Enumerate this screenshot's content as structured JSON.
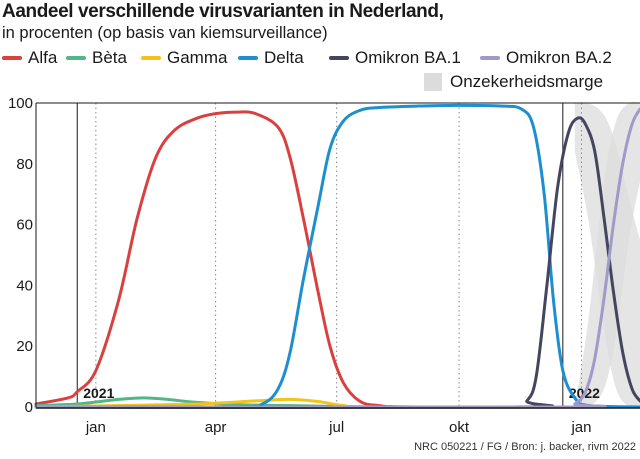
{
  "title": "Aandeel verschillende virusvarianten in Nederland,",
  "subtitle": "in procenten (op basis van kiemsurveillance)",
  "source": "NRC 050221 / FG / Bron: j. backer, rivm 2022",
  "colors": {
    "Alfa": "#d94040",
    "Bèta": "#52b788",
    "Gamma": "#f2c41a",
    "Delta": "#1d8fd1",
    "Omikron BA.1": "#454560",
    "Omikron BA.2": "#a09ac8",
    "band": "#dcdcdc"
  },
  "legend": {
    "alfa": "Alfa",
    "beta": "Bèta",
    "gamma": "Gamma",
    "delta": "Delta",
    "ba1": "Omikron BA.1",
    "ba2": "Omikron BA.2",
    "band": "Onzekerheidsmarge"
  },
  "chart_data": {
    "type": "line",
    "title": "Aandeel verschillende virusvarianten in Nederland,",
    "subtitle": "in procenten (op basis van kiemsurveillance)",
    "xlabel": "",
    "ylabel": "",
    "ylim": [
      0,
      100
    ],
    "xlim": [
      "2020-12-01",
      "2022-02-28"
    ],
    "y_ticks": [
      0,
      20,
      40,
      60,
      80,
      100
    ],
    "x_ticks": [
      {
        "date": "2021-01-15",
        "label": "jan"
      },
      {
        "date": "2021-04-15",
        "label": "apr"
      },
      {
        "date": "2021-07-15",
        "label": "jul"
      },
      {
        "date": "2021-10-15",
        "label": "okt"
      },
      {
        "date": "2022-01-15",
        "label": "jan"
      }
    ],
    "year_markers": [
      {
        "date": "2021-01-01",
        "label": "2021"
      },
      {
        "date": "2022-01-01",
        "label": "2022"
      }
    ],
    "grid": "vertical dotted",
    "legend_position": "top",
    "series": [
      {
        "name": "Alfa",
        "points": [
          [
            "2020-12-01",
            1
          ],
          [
            "2020-12-25",
            3
          ],
          [
            "2021-01-01",
            5
          ],
          [
            "2021-01-15",
            12
          ],
          [
            "2021-02-01",
            35
          ],
          [
            "2021-02-15",
            62
          ],
          [
            "2021-03-01",
            82
          ],
          [
            "2021-03-15",
            91
          ],
          [
            "2021-04-01",
            95
          ],
          [
            "2021-04-15",
            96.5
          ],
          [
            "2021-05-01",
            97
          ],
          [
            "2021-05-15",
            96.5
          ],
          [
            "2021-06-01",
            92
          ],
          [
            "2021-06-10",
            82
          ],
          [
            "2021-06-20",
            62
          ],
          [
            "2021-07-01",
            38
          ],
          [
            "2021-07-10",
            20
          ],
          [
            "2021-07-20",
            8
          ],
          [
            "2021-08-01",
            2
          ],
          [
            "2021-08-15",
            0.5
          ],
          [
            "2021-09-15",
            0
          ],
          [
            "2022-02-28",
            0
          ]
        ]
      },
      {
        "name": "Bèta",
        "points": [
          [
            "2020-12-01",
            0.5
          ],
          [
            "2021-01-01",
            1
          ],
          [
            "2021-02-01",
            2.5
          ],
          [
            "2021-02-20",
            3
          ],
          [
            "2021-03-10",
            2.5
          ],
          [
            "2021-04-01",
            1.5
          ],
          [
            "2021-05-01",
            0.8
          ],
          [
            "2021-06-01",
            0.5
          ],
          [
            "2021-07-01",
            0.3
          ],
          [
            "2021-09-01",
            0
          ],
          [
            "2022-02-28",
            0
          ]
        ]
      },
      {
        "name": "Gamma",
        "points": [
          [
            "2020-12-01",
            0
          ],
          [
            "2021-02-01",
            0.5
          ],
          [
            "2021-04-01",
            1
          ],
          [
            "2021-05-15",
            2
          ],
          [
            "2021-06-10",
            2.5
          ],
          [
            "2021-07-01",
            1.8
          ],
          [
            "2021-07-20",
            0.5
          ],
          [
            "2021-08-15",
            0
          ],
          [
            "2022-02-28",
            0
          ]
        ]
      },
      {
        "name": "Delta",
        "points": [
          [
            "2020-12-01",
            0
          ],
          [
            "2021-05-01",
            0
          ],
          [
            "2021-05-20",
            1
          ],
          [
            "2021-06-01",
            6
          ],
          [
            "2021-06-10",
            18
          ],
          [
            "2021-06-20",
            42
          ],
          [
            "2021-07-01",
            66
          ],
          [
            "2021-07-10",
            85
          ],
          [
            "2021-07-20",
            94
          ],
          [
            "2021-08-01",
            97.5
          ],
          [
            "2021-08-15",
            98.5
          ],
          [
            "2021-09-15",
            99
          ],
          [
            "2021-10-15",
            99.2
          ],
          [
            "2021-11-15",
            99
          ],
          [
            "2021-12-01",
            98
          ],
          [
            "2021-12-10",
            92
          ],
          [
            "2021-12-18",
            70
          ],
          [
            "2021-12-25",
            35
          ],
          [
            "2022-01-01",
            12
          ],
          [
            "2022-01-10",
            3
          ],
          [
            "2022-01-20",
            0.5
          ],
          [
            "2022-02-28",
            0
          ]
        ]
      },
      {
        "name": "Omikron BA.1",
        "points": [
          [
            "2020-12-01",
            0
          ],
          [
            "2021-11-25",
            0
          ],
          [
            "2021-12-05",
            2
          ],
          [
            "2021-12-12",
            10
          ],
          [
            "2021-12-20",
            40
          ],
          [
            "2021-12-28",
            72
          ],
          [
            "2022-01-05",
            90
          ],
          [
            "2022-01-12",
            95
          ],
          [
            "2022-01-18",
            93
          ],
          [
            "2022-01-25",
            84
          ],
          [
            "2022-02-01",
            62
          ],
          [
            "2022-02-08",
            38
          ],
          [
            "2022-02-15",
            18
          ],
          [
            "2022-02-22",
            6
          ],
          [
            "2022-02-28",
            2
          ]
        ]
      },
      {
        "name": "Omikron BA.2",
        "points": [
          [
            "2020-12-01",
            0
          ],
          [
            "2022-01-01",
            0
          ],
          [
            "2022-01-10",
            1
          ],
          [
            "2022-01-18",
            5
          ],
          [
            "2022-01-25",
            16
          ],
          [
            "2022-02-01",
            36
          ],
          [
            "2022-02-08",
            60
          ],
          [
            "2022-02-15",
            80
          ],
          [
            "2022-02-22",
            93
          ],
          [
            "2022-02-28",
            98
          ]
        ]
      }
    ],
    "uncertainty_bands": [
      {
        "series": "Omikron BA.1",
        "upper": [
          [
            "2022-01-10",
            100
          ],
          [
            "2022-01-20",
            100
          ],
          [
            "2022-02-01",
            96
          ],
          [
            "2022-02-10",
            86
          ],
          [
            "2022-02-20",
            68
          ],
          [
            "2022-02-28",
            55
          ]
        ],
        "lower": [
          [
            "2022-01-10",
            84
          ],
          [
            "2022-01-20",
            62
          ],
          [
            "2022-02-01",
            26
          ],
          [
            "2022-02-10",
            6
          ],
          [
            "2022-02-20",
            0
          ],
          [
            "2022-02-28",
            0
          ]
        ]
      },
      {
        "series": "Omikron BA.2",
        "upper": [
          [
            "2022-01-10",
            0
          ],
          [
            "2022-01-20",
            28
          ],
          [
            "2022-02-01",
            74
          ],
          [
            "2022-02-10",
            94
          ],
          [
            "2022-02-20",
            100
          ],
          [
            "2022-02-28",
            100
          ]
        ],
        "lower": [
          [
            "2022-01-10",
            0
          ],
          [
            "2022-01-20",
            0
          ],
          [
            "2022-02-01",
            6
          ],
          [
            "2022-02-10",
            24
          ],
          [
            "2022-02-20",
            56
          ],
          [
            "2022-02-28",
            74
          ]
        ]
      }
    ]
  }
}
